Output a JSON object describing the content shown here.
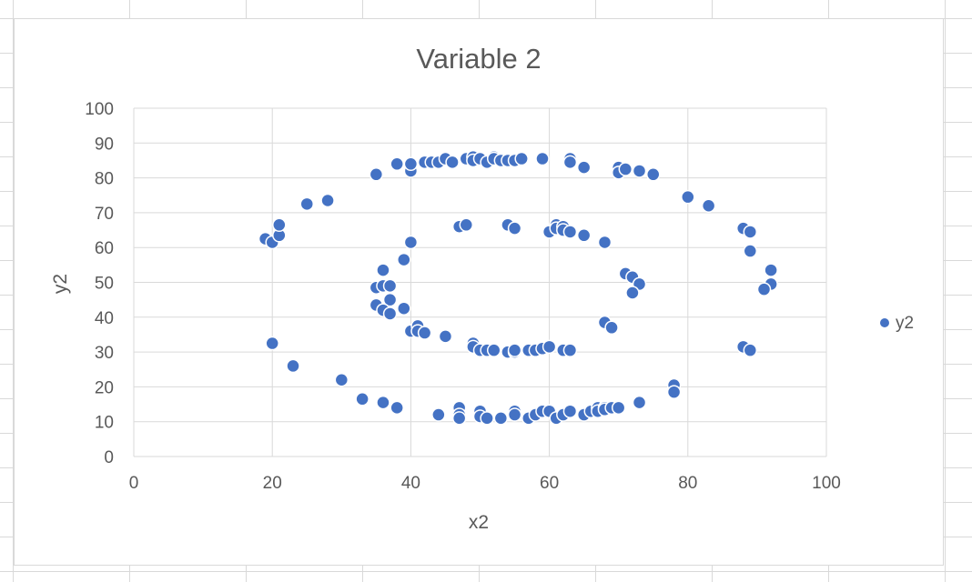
{
  "chart_data": {
    "type": "scatter",
    "title": "Variable 2",
    "xlabel": "x2",
    "ylabel": "y2",
    "xlim": [
      0,
      100
    ],
    "ylim": [
      0,
      100
    ],
    "xticks": [
      "0",
      "20",
      "40",
      "60",
      "80",
      "100"
    ],
    "yticks": [
      "0",
      "10",
      "20",
      "30",
      "40",
      "50",
      "60",
      "70",
      "80",
      "90",
      "100"
    ],
    "grid": true,
    "legend_position": "right",
    "series": [
      {
        "name": "y2",
        "color": "#4472C4",
        "points": [
          [
            19,
            62.5
          ],
          [
            20,
            61.5
          ],
          [
            21,
            63.5
          ],
          [
            21,
            66.5
          ],
          [
            25,
            72.5
          ],
          [
            28,
            73.5
          ],
          [
            35,
            81
          ],
          [
            38,
            84
          ],
          [
            40,
            82
          ],
          [
            40,
            84
          ],
          [
            42,
            84.5
          ],
          [
            43,
            84.5
          ],
          [
            44,
            84.5
          ],
          [
            45,
            85.5
          ],
          [
            46,
            84.5
          ],
          [
            48,
            85.5
          ],
          [
            49,
            86
          ],
          [
            49,
            85
          ],
          [
            50,
            85.5
          ],
          [
            51,
            84.5
          ],
          [
            52,
            86
          ],
          [
            52,
            85.5
          ],
          [
            53,
            85
          ],
          [
            54,
            85
          ],
          [
            55,
            85
          ],
          [
            56,
            85.5
          ],
          [
            59,
            85.5
          ],
          [
            63,
            85.5
          ],
          [
            63,
            84.5
          ],
          [
            65,
            83
          ],
          [
            70,
            83
          ],
          [
            70,
            81.5
          ],
          [
            71,
            82.5
          ],
          [
            73,
            82
          ],
          [
            75,
            81
          ],
          [
            80,
            74.5
          ],
          [
            83,
            72
          ],
          [
            88,
            65.5
          ],
          [
            89,
            64.5
          ],
          [
            89,
            59
          ],
          [
            92,
            53.5
          ],
          [
            92,
            49.5
          ],
          [
            91,
            48
          ],
          [
            20,
            32.5
          ],
          [
            23,
            26
          ],
          [
            30,
            22
          ],
          [
            33,
            16.5
          ],
          [
            36,
            15.5
          ],
          [
            38,
            14
          ],
          [
            44,
            12
          ],
          [
            47,
            14
          ],
          [
            47,
            12
          ],
          [
            47,
            11
          ],
          [
            50,
            13
          ],
          [
            50,
            11.5
          ],
          [
            51,
            11
          ],
          [
            53,
            11
          ],
          [
            55,
            13
          ],
          [
            55,
            12
          ],
          [
            57,
            11
          ],
          [
            58,
            12
          ],
          [
            59,
            13
          ],
          [
            60,
            13
          ],
          [
            61,
            11
          ],
          [
            62,
            12
          ],
          [
            63,
            13
          ],
          [
            65,
            12
          ],
          [
            66,
            13
          ],
          [
            67,
            14
          ],
          [
            67,
            13
          ],
          [
            68,
            14
          ],
          [
            68,
            13.5
          ],
          [
            69,
            14
          ],
          [
            70,
            14
          ],
          [
            73,
            15.5
          ],
          [
            78,
            20.5
          ],
          [
            78,
            18.5
          ],
          [
            88,
            31.5
          ],
          [
            89,
            30.5
          ],
          [
            40,
            61.5
          ],
          [
            39,
            56.5
          ],
          [
            36,
            53.5
          ],
          [
            35,
            48.5
          ],
          [
            36,
            49
          ],
          [
            37,
            49
          ],
          [
            37,
            45
          ],
          [
            35,
            43.5
          ],
          [
            36,
            42
          ],
          [
            37,
            41
          ],
          [
            39,
            42.5
          ],
          [
            40,
            36
          ],
          [
            41,
            37.5
          ],
          [
            41,
            36
          ],
          [
            42,
            35.5
          ],
          [
            45,
            34.5
          ],
          [
            49,
            32.5
          ],
          [
            49,
            31.5
          ],
          [
            50,
            30.5
          ],
          [
            51,
            30.5
          ],
          [
            52,
            30.5
          ],
          [
            54,
            30
          ],
          [
            55,
            30
          ],
          [
            55,
            30.5
          ],
          [
            57,
            30.5
          ],
          [
            58,
            30.5
          ],
          [
            59,
            31
          ],
          [
            60,
            31.5
          ],
          [
            62,
            30.5
          ],
          [
            63,
            30.5
          ],
          [
            47,
            66
          ],
          [
            48,
            66.5
          ],
          [
            54,
            66.5
          ],
          [
            55,
            65.5
          ],
          [
            60,
            64.5
          ],
          [
            61,
            66.5
          ],
          [
            61,
            65.5
          ],
          [
            62,
            66
          ],
          [
            62,
            65
          ],
          [
            63,
            64.5
          ],
          [
            65,
            63.5
          ],
          [
            68,
            61.5
          ],
          [
            71,
            52.5
          ],
          [
            72,
            51.5
          ],
          [
            73,
            49.5
          ],
          [
            72,
            47
          ],
          [
            68,
            38.5
          ],
          [
            69,
            37
          ]
        ]
      }
    ]
  }
}
